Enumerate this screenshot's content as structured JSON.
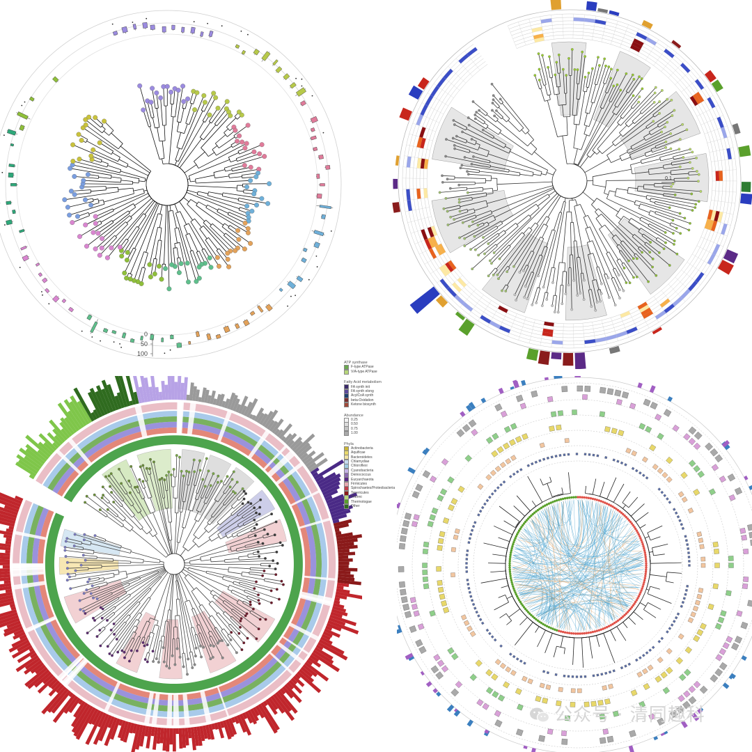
{
  "panels": [
    {
      "id": "tl",
      "bars": "box",
      "scale_ticks": [
        "0",
        "50",
        "100"
      ]
    },
    {
      "id": "tr",
      "bars": "heat",
      "scale_label": "0.1"
    },
    {
      "id": "bl",
      "bars": "stack"
    },
    {
      "id": "br",
      "bars": "square"
    }
  ],
  "legend": {
    "sections": [
      {
        "title": "ATP synthase",
        "items": [
          {
            "label": "F-type ATPase",
            "color": "#6aa84f"
          },
          {
            "label": "V/A-type ATPase",
            "color": "#b7d77a"
          }
        ]
      },
      {
        "title": "Fatty Acid metabolism",
        "items": [
          {
            "label": "FA synth init",
            "color": "#3a2a6b"
          },
          {
            "label": "FA synth elong",
            "color": "#5a4a9a"
          },
          {
            "label": "AcylCoA synth",
            "color": "#1f3f6e"
          },
          {
            "label": "beta-Oxidation",
            "color": "#7a2f2f"
          },
          {
            "label": "Ketone biosynth",
            "color": "#a04a3a"
          }
        ]
      },
      {
        "title": "Abundance",
        "items": [
          {
            "label": "0.25",
            "color": "#f2f2f2"
          },
          {
            "label": "0.50",
            "color": "#dcdcdc"
          },
          {
            "label": "0.75",
            "color": "#c4c4c4"
          },
          {
            "label": "1.00",
            "color": "#a9a9a9"
          }
        ]
      },
      {
        "title": "Phyla",
        "items": [
          {
            "label": "Actinobacteria",
            "color": "#c9b53a"
          },
          {
            "label": "Aquificae",
            "color": "#e8d96a"
          },
          {
            "label": "Bacteroidetes",
            "color": "#f1e3a0"
          },
          {
            "label": "Chlamydiae",
            "color": "#c6dbef"
          },
          {
            "label": "Chloroflexi",
            "color": "#9ecae1"
          },
          {
            "label": "Cyanobacteria",
            "color": "#c5b3e6"
          },
          {
            "label": "Deinococcus",
            "color": "#8c6bb1"
          },
          {
            "label": "Euryarchaeota",
            "color": "#5b2a86"
          },
          {
            "label": "Firmicutes",
            "color": "#e7a9b0"
          },
          {
            "label": "Spirochaetes/Proteobacteria",
            "color": "#c2404a"
          },
          {
            "label": "Tenericutes",
            "color": "#8b1a1a"
          },
          {
            "label": "Thermi",
            "color": "#b7d77a"
          },
          {
            "label": "Thermotogae",
            "color": "#5aa02c"
          },
          {
            "label": "Other",
            "color": "#2f6b1f"
          }
        ]
      }
    ]
  },
  "watermark": {
    "text": "公众号 · 清同趣科"
  }
}
